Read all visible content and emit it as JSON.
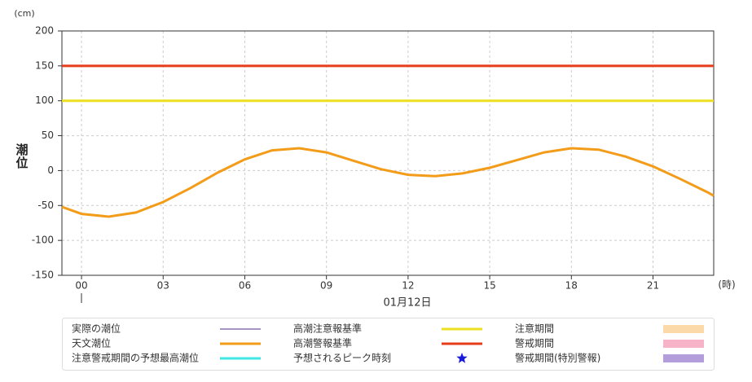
{
  "chart_data": {
    "type": "line",
    "y_unit": "(cm)",
    "x_unit": "(時)",
    "ylabel": "潮位",
    "xlabel": "01月12日",
    "xlim": [
      -0.72,
      23.23
    ],
    "xticks": [
      {
        "value": 0,
        "label": "00"
      },
      {
        "value": 3,
        "label": "03"
      },
      {
        "value": 6,
        "label": "06"
      },
      {
        "value": 9,
        "label": "09"
      },
      {
        "value": 12,
        "label": "12"
      },
      {
        "value": 15,
        "label": "15"
      },
      {
        "value": 18,
        "label": "18"
      },
      {
        "value": 21,
        "label": "21"
      }
    ],
    "ylim": [
      -150,
      200
    ],
    "yticks": [
      -150,
      -100,
      -50,
      0,
      50,
      100,
      150,
      200
    ],
    "grid": true,
    "x": [
      -0.72,
      0,
      1,
      2,
      3,
      4,
      5,
      6,
      7,
      8,
      9,
      10,
      11,
      12,
      13,
      14,
      15,
      16,
      17,
      18,
      19,
      20,
      21,
      22,
      23,
      23.23
    ],
    "series": [
      {
        "name": "実際の潮位",
        "color": "#4b2a8a",
        "values": [
          null,
          null,
          null,
          null,
          null,
          null,
          null,
          null,
          null,
          null,
          null,
          null,
          null,
          null,
          null,
          null,
          null,
          null,
          null,
          null,
          null,
          null,
          null,
          null,
          null,
          null
        ]
      },
      {
        "name": "天文潮位",
        "color": "#f39c1a",
        "values": [
          -52,
          -62,
          -66,
          -60,
          -45,
          -25,
          -3,
          16,
          29,
          32,
          26,
          14,
          2,
          -6,
          -8,
          -4,
          4,
          15,
          26,
          32,
          30,
          20,
          6,
          -12,
          -31,
          -36
        ]
      },
      {
        "name": "注意警戒期間の予想最高潮位",
        "color": "#3ee6e6",
        "values": [
          null,
          null,
          null,
          null,
          null,
          null,
          null,
          null,
          null,
          null,
          null,
          null,
          null,
          null,
          null,
          null,
          null,
          null,
          null,
          null,
          null,
          null,
          null,
          null,
          null,
          null
        ]
      }
    ],
    "reference_lines": [
      {
        "name": "高潮注意報基準",
        "value": 100,
        "color": "#ece020"
      },
      {
        "name": "高潮警報基準",
        "value": 150,
        "color": "#e63c1c"
      }
    ],
    "other_legend": [
      {
        "name": "予想されるピーク時刻",
        "color": "#1a1adb",
        "symbol": "star"
      },
      {
        "name": "注意期間",
        "color": "#fcd9a8",
        "symbol": "rect"
      },
      {
        "name": "警戒期間",
        "color": "#f7b3c8",
        "symbol": "rect"
      },
      {
        "name": "警戒期間(特別警報)",
        "color": "#b39ddb",
        "symbol": "rect"
      }
    ]
  }
}
